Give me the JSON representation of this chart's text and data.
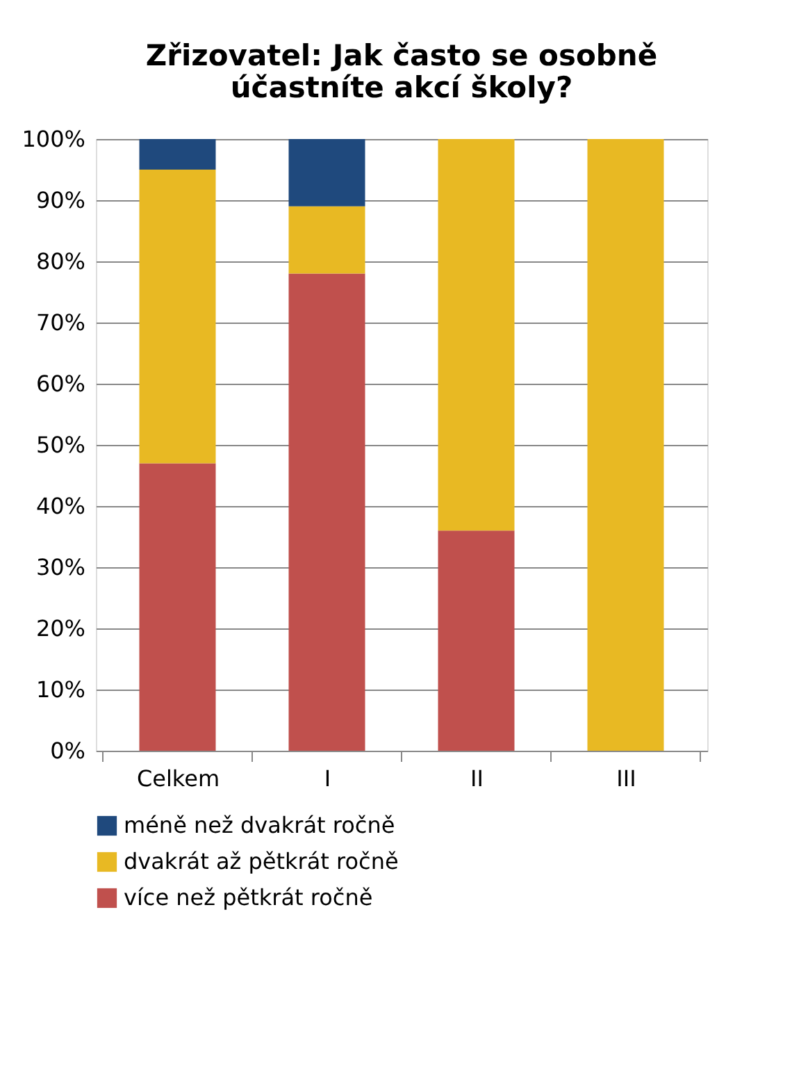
{
  "chart_data": {
    "type": "bar",
    "stacked": true,
    "title": "Zřizovatel: Jak často se osobně účastníte akcí školy?",
    "categories": [
      "Celkem",
      "I",
      "II",
      "III"
    ],
    "series": [
      {
        "name": "více než pětkrát ročně",
        "color": "#c0504d",
        "values": [
          47,
          78,
          36,
          0
        ]
      },
      {
        "name": "dvakrát až pětkrát ročně",
        "color": "#e8b923",
        "values": [
          48,
          11,
          64,
          100
        ]
      },
      {
        "name": "méně než dvakrát ročně",
        "color": "#1f497d",
        "values": [
          5,
          11,
          0,
          0
        ]
      }
    ],
    "ylim": [
      0,
      100
    ],
    "yticks": [
      {
        "value": 0,
        "label": "0%"
      },
      {
        "value": 10,
        "label": "10%"
      },
      {
        "value": 20,
        "label": "20%"
      },
      {
        "value": 30,
        "label": "30%"
      },
      {
        "value": 40,
        "label": "40%"
      },
      {
        "value": 50,
        "label": "50%"
      },
      {
        "value": 60,
        "label": "60%"
      },
      {
        "value": 70,
        "label": "70%"
      },
      {
        "value": 80,
        "label": "80%"
      },
      {
        "value": 90,
        "label": "90%"
      },
      {
        "value": 100,
        "label": "100%"
      }
    ],
    "grid": "y",
    "legend": "bottom"
  }
}
